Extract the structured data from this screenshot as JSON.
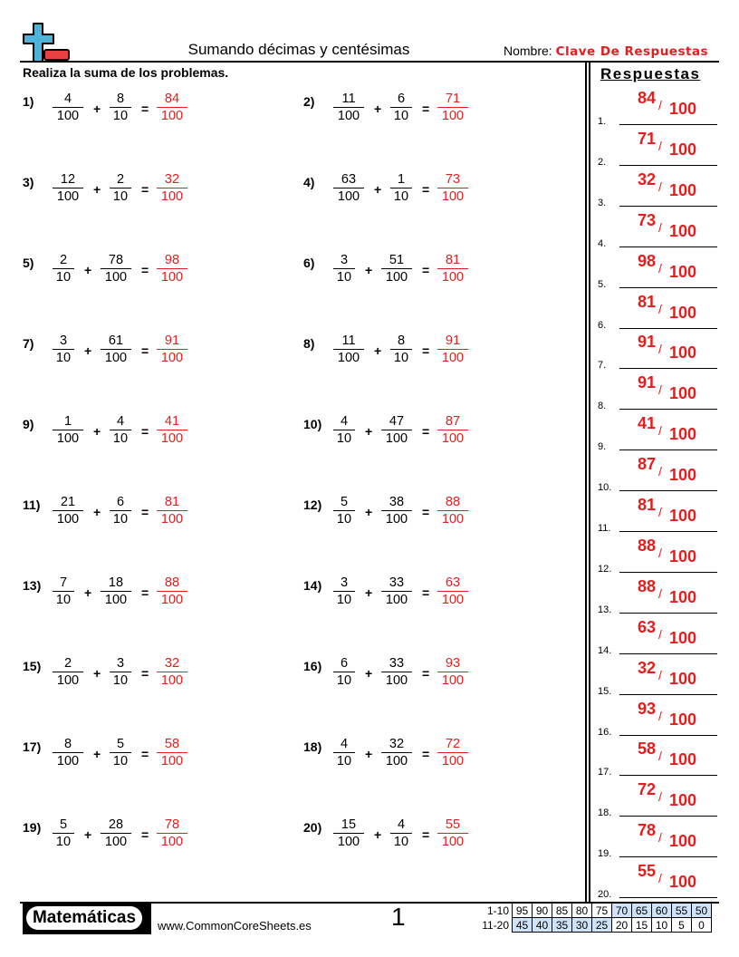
{
  "header": {
    "title": "Sumando décimas y centésimas",
    "name_label": "Nombre:",
    "name_value": "Clave De Respuestas"
  },
  "instructions": "Realiza la suma de los problemas.",
  "answers_title": "Respuestas",
  "colors": {
    "answer": "#e81c1c",
    "logo_blue": "#4fb3d9",
    "logo_red": "#e84040",
    "score_highlight": "#cfe2f8"
  },
  "problems": [
    {
      "label": "1)",
      "a": [
        "4",
        "100"
      ],
      "b": [
        "8",
        "10"
      ],
      "ans": [
        "84",
        "100"
      ]
    },
    {
      "label": "2)",
      "a": [
        "11",
        "100"
      ],
      "b": [
        "6",
        "10"
      ],
      "ans": [
        "71",
        "100"
      ]
    },
    {
      "label": "3)",
      "a": [
        "12",
        "100"
      ],
      "b": [
        "2",
        "10"
      ],
      "ans": [
        "32",
        "100"
      ]
    },
    {
      "label": "4)",
      "a": [
        "63",
        "100"
      ],
      "b": [
        "1",
        "10"
      ],
      "ans": [
        "73",
        "100"
      ]
    },
    {
      "label": "5)",
      "a": [
        "2",
        "10"
      ],
      "b": [
        "78",
        "100"
      ],
      "ans": [
        "98",
        "100"
      ]
    },
    {
      "label": "6)",
      "a": [
        "3",
        "10"
      ],
      "b": [
        "51",
        "100"
      ],
      "ans": [
        "81",
        "100"
      ]
    },
    {
      "label": "7)",
      "a": [
        "3",
        "10"
      ],
      "b": [
        "61",
        "100"
      ],
      "ans": [
        "91",
        "100"
      ]
    },
    {
      "label": "8)",
      "a": [
        "11",
        "100"
      ],
      "b": [
        "8",
        "10"
      ],
      "ans": [
        "91",
        "100"
      ]
    },
    {
      "label": "9)",
      "a": [
        "1",
        "100"
      ],
      "b": [
        "4",
        "10"
      ],
      "ans": [
        "41",
        "100"
      ]
    },
    {
      "label": "10)",
      "a": [
        "4",
        "10"
      ],
      "b": [
        "47",
        "100"
      ],
      "ans": [
        "87",
        "100"
      ]
    },
    {
      "label": "11)",
      "a": [
        "21",
        "100"
      ],
      "b": [
        "6",
        "10"
      ],
      "ans": [
        "81",
        "100"
      ]
    },
    {
      "label": "12)",
      "a": [
        "5",
        "10"
      ],
      "b": [
        "38",
        "100"
      ],
      "ans": [
        "88",
        "100"
      ]
    },
    {
      "label": "13)",
      "a": [
        "7",
        "10"
      ],
      "b": [
        "18",
        "100"
      ],
      "ans": [
        "88",
        "100"
      ]
    },
    {
      "label": "14)",
      "a": [
        "3",
        "10"
      ],
      "b": [
        "33",
        "100"
      ],
      "ans": [
        "63",
        "100"
      ]
    },
    {
      "label": "15)",
      "a": [
        "2",
        "100"
      ],
      "b": [
        "3",
        "10"
      ],
      "ans": [
        "32",
        "100"
      ]
    },
    {
      "label": "16)",
      "a": [
        "6",
        "10"
      ],
      "b": [
        "33",
        "100"
      ],
      "ans": [
        "93",
        "100"
      ]
    },
    {
      "label": "17)",
      "a": [
        "8",
        "100"
      ],
      "b": [
        "5",
        "10"
      ],
      "ans": [
        "58",
        "100"
      ]
    },
    {
      "label": "18)",
      "a": [
        "4",
        "10"
      ],
      "b": [
        "32",
        "100"
      ],
      "ans": [
        "72",
        "100"
      ]
    },
    {
      "label": "19)",
      "a": [
        "5",
        "10"
      ],
      "b": [
        "28",
        "100"
      ],
      "ans": [
        "78",
        "100"
      ]
    },
    {
      "label": "20)",
      "a": [
        "15",
        "100"
      ],
      "b": [
        "4",
        "10"
      ],
      "ans": [
        "55",
        "100"
      ]
    }
  ],
  "operators": {
    "plus": "+",
    "equals": "="
  },
  "answer_key": {
    "numbers": [
      "1.",
      "2.",
      "3.",
      "4.",
      "5.",
      "6.",
      "7.",
      "8.",
      "9.",
      "10.",
      "11.",
      "12.",
      "13.",
      "14.",
      "15.",
      "16.",
      "17.",
      "18.",
      "19.",
      "20."
    ],
    "slash": "/"
  },
  "footer": {
    "logo": "Matemáticas",
    "site": "www.CommonCoreSheets.es",
    "page": "1",
    "score_rows": [
      {
        "label": "1-10",
        "values": [
          "95",
          "90",
          "85",
          "80",
          "75",
          "70",
          "65",
          "60",
          "55",
          "50"
        ]
      },
      {
        "label": "11-20",
        "values": [
          "45",
          "40",
          "35",
          "30",
          "25",
          "20",
          "15",
          "10",
          "5",
          "0"
        ]
      }
    ]
  }
}
